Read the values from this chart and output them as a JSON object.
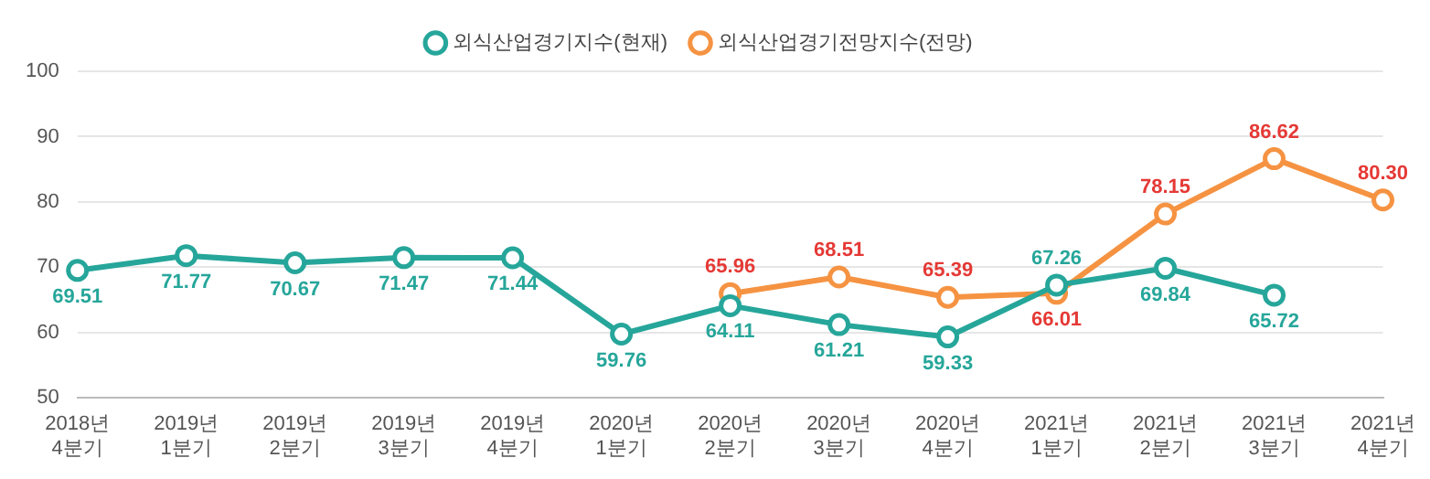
{
  "chart_data": {
    "type": "line",
    "categories": [
      "2018년 4분기",
      "2019년 1분기",
      "2019년 2분기",
      "2019년 3분기",
      "2019년 4분기",
      "2020년 1분기",
      "2020년 2분기",
      "2020년 3분기",
      "2020년 4분기",
      "2021년 1분기",
      "2021년 2분기",
      "2021년 3분기",
      "2021년 4분기"
    ],
    "series": [
      {
        "name": "외식산업경기지수(현재)",
        "color": "#26a69a",
        "values": [
          69.51,
          71.77,
          70.67,
          71.47,
          71.44,
          59.76,
          64.11,
          61.21,
          59.33,
          67.26,
          69.84,
          65.72,
          null
        ],
        "value_labels": [
          "69.51",
          "71.77",
          "70.67",
          "71.47",
          "71.44",
          "59.76",
          "64.11",
          "61.21",
          "59.33",
          "67.26",
          "69.84",
          "65.72",
          null
        ]
      },
      {
        "name": "외식산업경기전망지수(전망)",
        "color": "#f59342",
        "values": [
          null,
          null,
          null,
          null,
          null,
          null,
          65.96,
          68.51,
          65.39,
          66.01,
          78.15,
          86.62,
          80.3
        ],
        "value_labels": [
          null,
          null,
          null,
          null,
          null,
          null,
          "65.96",
          "68.51",
          "65.39",
          "66.01",
          "78.15",
          "86.62",
          "80.30"
        ]
      }
    ],
    "ylim": [
      50,
      100
    ],
    "yticks": [
      50,
      60,
      70,
      80,
      90,
      100
    ],
    "grid": "y",
    "legend": "top",
    "marker": "circle",
    "line_style": "solid"
  }
}
